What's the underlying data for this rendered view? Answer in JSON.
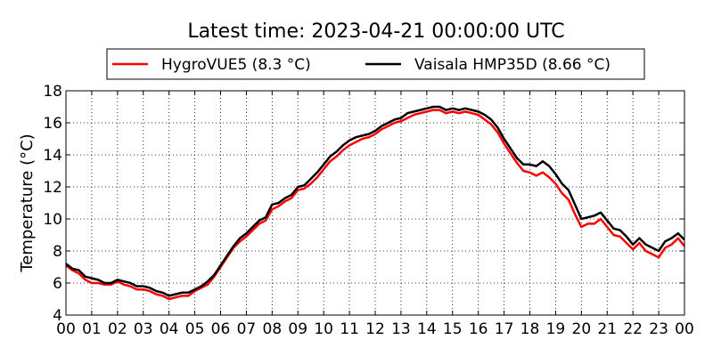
{
  "chart_data": {
    "type": "line",
    "title": "Latest time: 2023-04-21 00:00:00 UTC",
    "ylabel": "Temperature (°C)",
    "xlabel": "",
    "ylim": [
      4,
      18
    ],
    "xlim": [
      0,
      24
    ],
    "y_ticks": [
      4,
      6,
      8,
      10,
      12,
      14,
      16,
      18
    ],
    "x_ticks": [
      "00",
      "01",
      "02",
      "03",
      "04",
      "05",
      "06",
      "07",
      "08",
      "09",
      "10",
      "11",
      "12",
      "13",
      "14",
      "15",
      "16",
      "17",
      "18",
      "19",
      "20",
      "21",
      "22",
      "23",
      "00"
    ],
    "grid": true,
    "legend_position": "top-center",
    "series": [
      {
        "name": "HygroVUE5 (8.3 °C)",
        "color": "#ff0000",
        "x": [
          0,
          0.25,
          0.5,
          0.75,
          1,
          1.25,
          1.5,
          1.75,
          2,
          2.25,
          2.5,
          2.75,
          3,
          3.25,
          3.5,
          3.75,
          4,
          4.25,
          4.5,
          4.75,
          5,
          5.25,
          5.5,
          5.75,
          6,
          6.25,
          6.5,
          6.75,
          7,
          7.25,
          7.5,
          7.75,
          8,
          8.25,
          8.5,
          8.75,
          9,
          9.25,
          9.5,
          9.75,
          10,
          10.25,
          10.5,
          10.75,
          11,
          11.25,
          11.5,
          11.75,
          12,
          12.25,
          12.5,
          12.75,
          13,
          13.25,
          13.5,
          13.75,
          14,
          14.25,
          14.5,
          14.75,
          15,
          15.25,
          15.5,
          15.75,
          16,
          16.25,
          16.5,
          16.75,
          17,
          17.25,
          17.5,
          17.75,
          18,
          18.25,
          18.5,
          18.75,
          19,
          19.25,
          19.5,
          19.75,
          20,
          20.25,
          20.5,
          20.75,
          21,
          21.25,
          21.5,
          21.75,
          22,
          22.25,
          22.5,
          22.75,
          23,
          23.25,
          23.5,
          23.75,
          24
        ],
        "values": [
          7.1,
          6.8,
          6.6,
          6.2,
          6.0,
          6.0,
          5.9,
          5.9,
          6.1,
          5.9,
          5.8,
          5.6,
          5.6,
          5.5,
          5.3,
          5.2,
          5.0,
          5.1,
          5.2,
          5.2,
          5.5,
          5.7,
          5.9,
          6.4,
          7.0,
          7.6,
          8.2,
          8.6,
          8.9,
          9.3,
          9.7,
          9.9,
          10.6,
          10.8,
          11.1,
          11.3,
          11.8,
          11.9,
          12.2,
          12.6,
          13.1,
          13.6,
          13.9,
          14.3,
          14.6,
          14.8,
          15.0,
          15.1,
          15.3,
          15.6,
          15.8,
          16.0,
          16.1,
          16.3,
          16.5,
          16.6,
          16.7,
          16.8,
          16.8,
          16.6,
          16.7,
          16.6,
          16.7,
          16.6,
          16.5,
          16.2,
          15.9,
          15.4,
          14.7,
          14.1,
          13.5,
          13.0,
          12.9,
          12.7,
          12.9,
          12.6,
          12.2,
          11.6,
          11.2,
          10.3,
          9.5,
          9.7,
          9.7,
          10.0,
          9.5,
          9.0,
          8.9,
          8.5,
          8.1,
          8.5,
          8.0,
          7.8,
          7.6,
          8.2,
          8.4,
          8.8,
          8.3
        ]
      },
      {
        "name": "Vaisala HMP35D (8.66 °C)",
        "color": "#000000",
        "x": [
          0,
          0.25,
          0.5,
          0.75,
          1,
          1.25,
          1.5,
          1.75,
          2,
          2.25,
          2.5,
          2.75,
          3,
          3.25,
          3.5,
          3.75,
          4,
          4.25,
          4.5,
          4.75,
          5,
          5.25,
          5.5,
          5.75,
          6,
          6.25,
          6.5,
          6.75,
          7,
          7.25,
          7.5,
          7.75,
          8,
          8.25,
          8.5,
          8.75,
          9,
          9.25,
          9.5,
          9.75,
          10,
          10.25,
          10.5,
          10.75,
          11,
          11.25,
          11.5,
          11.75,
          12,
          12.25,
          12.5,
          12.75,
          13,
          13.25,
          13.5,
          13.75,
          14,
          14.25,
          14.5,
          14.75,
          15,
          15.25,
          15.5,
          15.75,
          16,
          16.25,
          16.5,
          16.75,
          17,
          17.25,
          17.5,
          17.75,
          18,
          18.25,
          18.5,
          18.75,
          19,
          19.25,
          19.5,
          19.75,
          20,
          20.25,
          20.5,
          20.75,
          21,
          21.25,
          21.5,
          21.75,
          22,
          22.25,
          22.5,
          22.75,
          23,
          23.25,
          23.5,
          23.75,
          24
        ],
        "values": [
          7.2,
          6.9,
          6.8,
          6.4,
          6.3,
          6.2,
          6.0,
          6.0,
          6.2,
          6.1,
          6.0,
          5.8,
          5.8,
          5.7,
          5.5,
          5.4,
          5.2,
          5.3,
          5.4,
          5.4,
          5.6,
          5.8,
          6.1,
          6.5,
          7.1,
          7.7,
          8.3,
          8.8,
          9.1,
          9.5,
          9.9,
          10.1,
          10.9,
          11.0,
          11.3,
          11.5,
          12.0,
          12.1,
          12.5,
          12.9,
          13.4,
          13.9,
          14.2,
          14.6,
          14.9,
          15.1,
          15.2,
          15.3,
          15.5,
          15.8,
          16.0,
          16.2,
          16.3,
          16.6,
          16.7,
          16.8,
          16.9,
          17.0,
          17.0,
          16.8,
          16.9,
          16.8,
          16.9,
          16.8,
          16.7,
          16.5,
          16.2,
          15.7,
          15.0,
          14.4,
          13.8,
          13.4,
          13.4,
          13.3,
          13.6,
          13.3,
          12.8,
          12.2,
          11.8,
          10.9,
          10.0,
          10.1,
          10.2,
          10.4,
          9.9,
          9.4,
          9.3,
          8.9,
          8.4,
          8.8,
          8.4,
          8.2,
          8.0,
          8.6,
          8.8,
          9.1,
          8.7
        ]
      }
    ]
  }
}
